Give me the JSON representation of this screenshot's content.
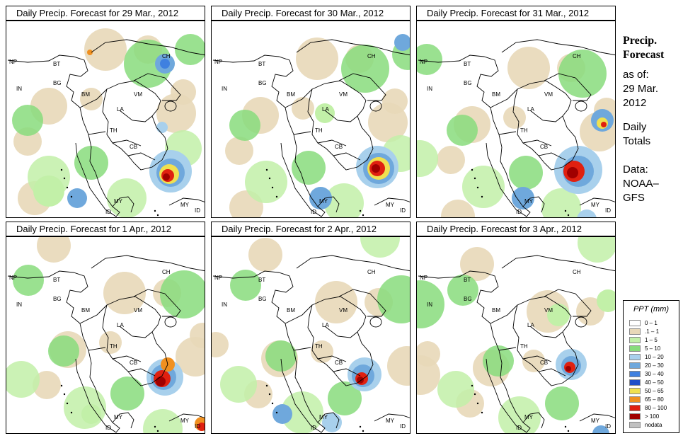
{
  "panels": [
    {
      "title": "Daily Precip. Forecast for  29 Mar., 2012"
    },
    {
      "title": "Daily Precip. Forecast for  30 Mar., 2012"
    },
    {
      "title": "Daily Precip. Forecast for  31 Mar., 2012"
    },
    {
      "title": "Daily Precip. Forecast for  1 Apr., 2012"
    },
    {
      "title": "Daily Precip. Forecast for  2 Apr., 2012"
    },
    {
      "title": "Daily Precip. Forecast for  3 Apr., 2012"
    }
  ],
  "country_labels": [
    "NP",
    "BT",
    "BG",
    "IN",
    "BM",
    "CH",
    "VM",
    "LA",
    "TH",
    "CB",
    "MY",
    "ID"
  ],
  "side": {
    "heading_line1": "Precip.",
    "heading_line2": "Forecast",
    "asof_line1": "as of:",
    "asof_line2": "29 Mar.",
    "asof_line3": "2012",
    "totals_line1": "Daily",
    "totals_line2": "Totals",
    "data_line1": "Data:",
    "data_line2": "NOAA–",
    "data_line3": "GFS"
  },
  "legend": {
    "title": "PPT (mm)",
    "items": [
      {
        "label": "0 – 1",
        "color": "#ffffff"
      },
      {
        "label": ".1 – 1",
        "color": "#e8d8b8"
      },
      {
        "label": "1 – 5",
        "color": "#c2f0a8"
      },
      {
        "label": "5 – 10",
        "color": "#88dc7c"
      },
      {
        "label": "10 – 20",
        "color": "#a8d0ec"
      },
      {
        "label": "20 – 30",
        "color": "#6fa8dc"
      },
      {
        "label": "30 – 40",
        "color": "#3f80e0"
      },
      {
        "label": "40 – 50",
        "color": "#1f4fc8"
      },
      {
        "label": "50 – 65",
        "color": "#f0e050"
      },
      {
        "label": "65 – 80",
        "color": "#f09020"
      },
      {
        "label": "80 – 100",
        "color": "#e02010"
      },
      {
        "label": "> 100",
        "color": "#a00000"
      },
      {
        "label": "nodata",
        "color": "#c0c0c0"
      }
    ]
  }
}
